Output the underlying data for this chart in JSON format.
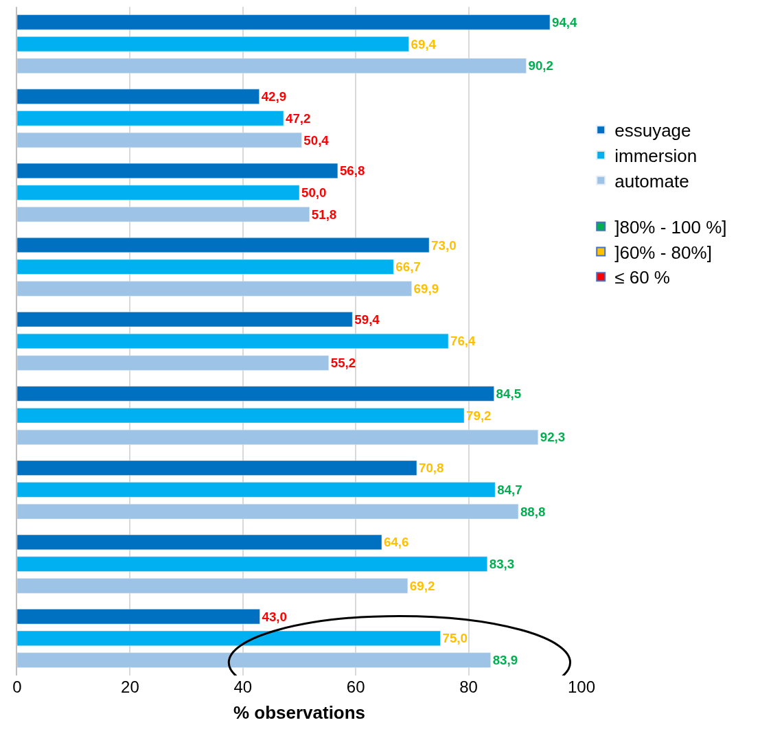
{
  "chart_data": {
    "type": "bar",
    "orientation": "horizontal",
    "categories": [
      null,
      null,
      null,
      null,
      null,
      null,
      null,
      null,
      null
    ],
    "series": [
      {
        "name": "essuyage",
        "color": "#0070c0",
        "values": [
          94.4,
          42.9,
          56.8,
          73.0,
          59.4,
          84.5,
          70.8,
          64.6,
          43.0
        ],
        "value_labels": [
          "94,4",
          "42,9",
          "56,8",
          "73,0",
          "59,4",
          "84,5",
          "70,8",
          "64,6",
          "43,0"
        ]
      },
      {
        "name": "immersion",
        "color": "#00b0f0",
        "values": [
          69.4,
          47.2,
          50.0,
          66.7,
          76.4,
          79.2,
          84.7,
          83.3,
          75.0
        ],
        "value_labels": [
          "69,4",
          "47,2",
          "50,0",
          "66,7",
          "76,4",
          "79,2",
          "84,7",
          "83,3",
          "75,0"
        ]
      },
      {
        "name": "automate",
        "color": "#9dc3e6",
        "values": [
          90.2,
          50.4,
          51.8,
          69.9,
          55.2,
          92.3,
          88.8,
          69.2,
          83.9
        ],
        "value_labels": [
          "90,2",
          "50,4",
          "51,8",
          "69,9",
          "55,2",
          "92,3",
          "88,8",
          "69,2",
          "83,9"
        ]
      },
      {
        "name": "]80% - 100 %]",
        "type": "scatter",
        "marker": "square",
        "color": "#00b050",
        "values": [
          null,
          null,
          null,
          null,
          null,
          null,
          null,
          null,
          null
        ]
      },
      {
        "name": "]60% - 80%]",
        "type": "scatter",
        "marker": "square",
        "color": "#ffc000",
        "values": [
          null,
          null,
          null,
          null,
          null,
          null,
          null,
          null,
          null
        ]
      },
      {
        "name": "≤ 60 %",
        "type": "scatter",
        "marker": "square",
        "color": "#ff0000",
        "values": [
          null,
          null,
          null,
          null,
          null,
          null,
          null,
          null,
          null
        ]
      }
    ],
    "xlabel": "% observations",
    "xlim": [
      0,
      100
    ],
    "xticks": [
      0,
      20,
      40,
      60,
      80,
      100
    ],
    "grid": "x",
    "legend": "right"
  }
}
